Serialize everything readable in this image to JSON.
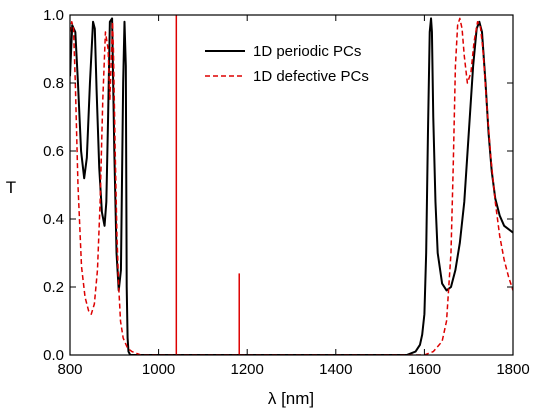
{
  "chart_data": {
    "type": "line",
    "title": "",
    "xlabel": "λ [nm]",
    "ylabel": "T",
    "xlim": [
      800,
      1800
    ],
    "ylim": [
      0.0,
      1.0
    ],
    "x_ticks": [
      "800",
      "1000",
      "1200",
      "1400",
      "1600",
      "1800"
    ],
    "y_ticks": [
      "0.0",
      "0.2",
      "0.4",
      "0.6",
      "0.8",
      "1.0"
    ],
    "grid": false,
    "legend_position": "top-right",
    "series": [
      {
        "name": "1D periodic PCs",
        "color": "#000000",
        "style": "solid",
        "x": [
          800,
          805,
          812,
          818,
          825,
          832,
          838,
          845,
          852,
          856,
          860,
          866,
          872,
          878,
          882,
          886,
          890,
          895,
          900,
          905,
          910,
          915,
          920,
          923,
          926,
          928,
          930,
          932,
          936,
          940,
          950,
          970,
          1000,
          1100,
          1200,
          1300,
          1400,
          1500,
          1560,
          1580,
          1590,
          1595,
          1600,
          1604,
          1608,
          1612,
          1615,
          1617,
          1620,
          1625,
          1630,
          1640,
          1650,
          1660,
          1670,
          1680,
          1690,
          1700,
          1710,
          1718,
          1724,
          1730,
          1738,
          1745,
          1752,
          1760,
          1770,
          1780,
          1790,
          1800
        ],
        "y": [
          0.82,
          0.97,
          0.95,
          0.8,
          0.6,
          0.52,
          0.58,
          0.8,
          0.98,
          0.96,
          0.78,
          0.55,
          0.42,
          0.38,
          0.45,
          0.7,
          0.98,
          0.99,
          0.6,
          0.3,
          0.19,
          0.25,
          0.8,
          0.98,
          0.85,
          0.2,
          0.05,
          0.01,
          0.0,
          0.0,
          0.0,
          0.0,
          0.0,
          0.0,
          0.0,
          0.0,
          0.0,
          0.0,
          0.0,
          0.01,
          0.03,
          0.06,
          0.12,
          0.3,
          0.65,
          0.95,
          0.99,
          0.95,
          0.7,
          0.45,
          0.3,
          0.21,
          0.19,
          0.2,
          0.25,
          0.33,
          0.45,
          0.65,
          0.85,
          0.96,
          0.98,
          0.95,
          0.8,
          0.65,
          0.54,
          0.46,
          0.41,
          0.38,
          0.37,
          0.36
        ]
      },
      {
        "name": "1D defective PCs",
        "color": "#dd0000",
        "style": "dashed",
        "x": [
          800,
          804,
          808,
          812,
          818,
          826,
          834,
          842,
          848,
          855,
          862,
          868,
          874,
          880,
          886,
          890,
          894,
          896,
          898,
          902,
          906,
          910,
          914,
          920,
          930,
          940,
          960,
          980,
          1000,
          1100,
          1200,
          1300,
          1400,
          1500,
          1550,
          1600,
          1620,
          1640,
          1650,
          1660,
          1665,
          1670,
          1675,
          1680,
          1685,
          1690,
          1697,
          1705,
          1712,
          1720,
          1726,
          1732,
          1740,
          1750,
          1760,
          1770,
          1780,
          1790,
          1800
        ],
        "y": [
          0.95,
          0.98,
          0.96,
          0.8,
          0.5,
          0.26,
          0.17,
          0.13,
          0.12,
          0.15,
          0.25,
          0.45,
          0.75,
          0.95,
          0.9,
          0.75,
          0.9,
          0.98,
          0.9,
          0.6,
          0.35,
          0.2,
          0.1,
          0.05,
          0.02,
          0.01,
          0.0,
          0.0,
          0.0,
          0.0,
          0.0,
          0.0,
          0.0,
          0.0,
          0.0,
          0.0,
          0.01,
          0.04,
          0.1,
          0.3,
          0.55,
          0.85,
          0.97,
          0.99,
          0.96,
          0.88,
          0.8,
          0.83,
          0.92,
          0.98,
          0.97,
          0.9,
          0.75,
          0.58,
          0.45,
          0.35,
          0.28,
          0.23,
          0.19
        ]
      }
    ],
    "vertical_lines": [
      {
        "x": 1040,
        "y_top": 1.0,
        "color": "#dd0000"
      },
      {
        "x": 1182,
        "y_top": 0.24,
        "color": "#dd0000"
      }
    ]
  }
}
